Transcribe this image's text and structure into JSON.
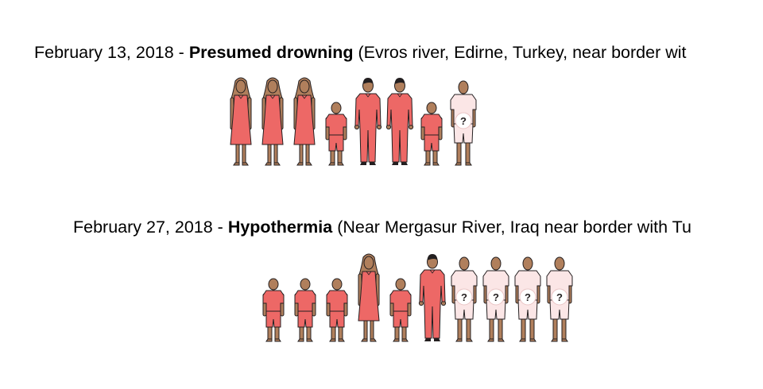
{
  "colors": {
    "skin": "#b07f5c",
    "clothing_known": "#ed6866",
    "clothing_unknown": "#fbe6e6",
    "outline": "#231f20"
  },
  "incidents": [
    {
      "date": "February 13, 2018",
      "separator": " - ",
      "cause": "Presumed drowning",
      "location": " (Evros river, Edirne, Turkey, near border wit",
      "figures": [
        "woman",
        "woman",
        "woman",
        "child",
        "man",
        "man",
        "child",
        "unknown"
      ]
    },
    {
      "date": "February 27, 2018",
      "separator": " - ",
      "cause": "Hypothermia",
      "location": " (Near Mergasur River, Iraq near border with Tu",
      "figures": [
        "child",
        "child",
        "child",
        "woman",
        "child",
        "man",
        "unknown",
        "unknown",
        "unknown",
        "unknown"
      ]
    }
  ],
  "unknown_marker": "?"
}
